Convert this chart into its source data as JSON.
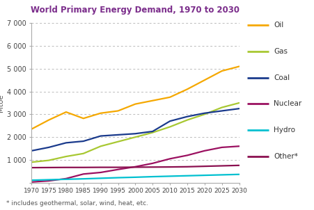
{
  "title": "World Primary Energy Demand, 1970 to 2030",
  "ylabel": "Mtoe",
  "footnote": "* includes geothermal, solar, wind, heat, etc.",
  "years": [
    1970,
    1975,
    1980,
    1985,
    1990,
    1995,
    2000,
    2005,
    2010,
    2015,
    2020,
    2025,
    2030
  ],
  "series": {
    "Oil": {
      "color": "#F5A800",
      "values": [
        2350,
        2750,
        3100,
        2820,
        3050,
        3150,
        3450,
        3600,
        3750,
        4100,
        4500,
        4900,
        5100
      ]
    },
    "Gas": {
      "color": "#A8C832",
      "values": [
        900,
        980,
        1150,
        1280,
        1600,
        1800,
        2000,
        2200,
        2450,
        2750,
        3000,
        3300,
        3500
      ]
    },
    "Coal": {
      "color": "#1A3A8C",
      "values": [
        1400,
        1550,
        1750,
        1820,
        2050,
        2100,
        2150,
        2250,
        2700,
        2900,
        3050,
        3150,
        3250
      ]
    },
    "Nuclear": {
      "color": "#9B1060",
      "values": [
        30,
        80,
        180,
        380,
        450,
        580,
        700,
        850,
        1050,
        1200,
        1400,
        1550,
        1600
      ]
    },
    "Hydro": {
      "color": "#00C0D0",
      "values": [
        110,
        130,
        150,
        170,
        195,
        220,
        240,
        265,
        285,
        305,
        325,
        345,
        365
      ]
    },
    "Other*": {
      "color": "#8B1050",
      "values": [
        660,
        665,
        670,
        670,
        675,
        675,
        680,
        685,
        690,
        700,
        720,
        740,
        760
      ]
    }
  },
  "ylim": [
    0,
    7000
  ],
  "yticks": [
    0,
    1000,
    2000,
    3000,
    4000,
    5000,
    6000,
    7000
  ],
  "ytick_labels": [
    "",
    "1 000",
    "2 000",
    "3 000",
    "4 000",
    "5 000",
    "6 000",
    "7 000"
  ],
  "xticks": [
    1970,
    1975,
    1980,
    1985,
    1990,
    1995,
    2000,
    2005,
    2010,
    2015,
    2020,
    2025,
    2030
  ],
  "title_color": "#7B2D8B",
  "background_color": "#FFFFFF",
  "legend_order": [
    "Oil",
    "Gas",
    "Coal",
    "Nuclear",
    "Hydro",
    "Other*"
  ]
}
